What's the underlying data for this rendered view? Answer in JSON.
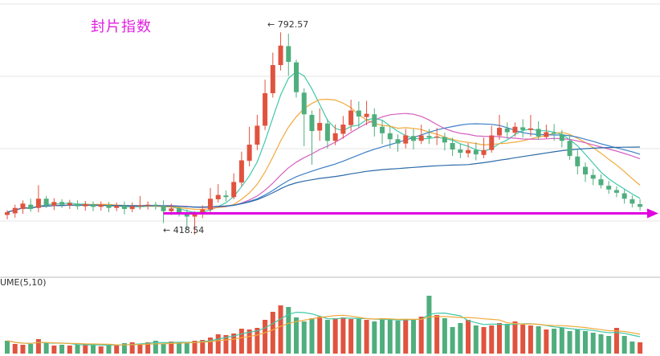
{
  "title": "封片指数",
  "colors": {
    "up": "#e0533e",
    "down": "#4fae7d",
    "ma5": "#40c8a8",
    "ma10": "#f2a93b",
    "ma20": "#d65fc0",
    "ma30": "#3c7fc8",
    "ma60": "#2b6aa8",
    "support": "#e000e0",
    "grid": "#e6e6e6",
    "divider": "#bbbbbb"
  },
  "chart_data": {
    "type": "candlestick",
    "title": "封片指数",
    "annotations": {
      "high_label": "← 792.57",
      "low_label": "← 418.54",
      "high": 792.57,
      "low": 418.54
    },
    "volume_label": "UME(5,10)",
    "candles": [
      [
        455,
        460,
        447,
        464
      ],
      [
        458,
        468,
        450,
        474
      ],
      [
        466,
        476,
        457,
        482
      ],
      [
        474,
        466,
        461,
        485
      ],
      [
        468,
        485,
        460,
        510
      ],
      [
        485,
        473,
        468,
        490
      ],
      [
        472,
        479,
        464,
        486
      ],
      [
        479,
        474,
        468,
        484
      ],
      [
        473,
        477,
        466,
        483
      ],
      [
        476,
        471,
        465,
        482
      ],
      [
        471,
        475,
        463,
        481
      ],
      [
        475,
        470,
        462,
        480
      ],
      [
        470,
        474,
        463,
        480
      ],
      [
        473,
        468,
        460,
        479
      ],
      [
        468,
        472,
        462,
        478
      ],
      [
        472,
        466,
        456,
        480
      ],
      [
        466,
        471,
        460,
        478
      ],
      [
        471,
        473,
        465,
        490
      ],
      [
        473,
        474,
        465,
        480
      ],
      [
        474,
        472,
        465,
        479
      ],
      [
        472,
        462,
        440,
        482
      ],
      [
        462,
        467,
        455,
        476
      ],
      [
        467,
        460,
        452,
        472
      ],
      [
        459,
        452,
        428,
        465
      ],
      [
        452,
        458,
        418.54,
        462
      ],
      [
        457,
        465,
        449,
        473
      ],
      [
        465,
        485,
        458,
        505
      ],
      [
        484,
        492,
        478,
        512
      ],
      [
        491,
        488,
        480,
        500
      ],
      [
        488,
        516,
        484,
        532
      ],
      [
        515,
        556,
        508,
        572
      ],
      [
        555,
        585,
        545,
        618
      ],
      [
        585,
        620,
        575,
        640
      ],
      [
        620,
        680,
        612,
        705
      ],
      [
        680,
        732,
        672,
        755
      ],
      [
        732,
        768,
        722,
        792.57
      ],
      [
        767,
        738,
        712,
        790
      ],
      [
        737,
        682,
        672,
        742
      ],
      [
        681,
        641,
        582,
        689
      ],
      [
        640,
        610,
        548,
        648
      ],
      [
        611,
        625,
        592,
        652
      ],
      [
        624,
        592,
        578,
        632
      ],
      [
        592,
        606,
        584,
        622
      ],
      [
        605,
        622,
        596,
        638
      ],
      [
        621,
        648,
        610,
        668
      ],
      [
        648,
        637,
        616,
        665
      ],
      [
        636,
        642,
        621,
        666
      ],
      [
        641,
        618,
        600,
        652
      ],
      [
        618,
        606,
        586,
        630
      ],
      [
        606,
        595,
        578,
        619
      ],
      [
        595,
        587,
        572,
        604
      ],
      [
        587,
        602,
        578,
        614
      ],
      [
        601,
        592,
        576,
        614
      ],
      [
        592,
        602,
        586,
        622
      ],
      [
        601,
        598,
        586,
        614
      ],
      [
        598,
        600,
        584,
        616
      ],
      [
        599,
        589,
        574,
        607
      ],
      [
        588,
        576,
        564,
        598
      ],
      [
        576,
        570,
        560,
        587
      ],
      [
        569,
        575,
        561,
        588
      ],
      [
        575,
        567,
        556,
        589
      ],
      [
        566,
        575,
        560,
        598
      ],
      [
        575,
        602,
        570,
        620
      ],
      [
        602,
        616,
        594,
        640
      ],
      [
        615,
        608,
        596,
        626
      ],
      [
        607,
        618,
        600,
        626
      ],
      [
        617,
        612,
        598,
        632
      ],
      [
        612,
        615,
        600,
        640
      ],
      [
        614,
        600,
        594,
        628
      ],
      [
        599,
        608,
        596,
        622
      ],
      [
        607,
        605,
        592,
        623
      ],
      [
        604,
        592,
        580,
        612
      ],
      [
        592,
        564,
        557,
        602
      ],
      [
        563,
        545,
        530,
        575
      ],
      [
        544,
        530,
        516,
        552
      ],
      [
        529,
        522,
        510,
        540
      ],
      [
        521,
        510,
        504,
        530
      ],
      [
        509,
        502,
        494,
        518
      ],
      [
        501,
        496,
        488,
        508
      ],
      [
        495,
        485,
        476,
        502
      ],
      [
        484,
        476,
        469,
        491
      ],
      [
        475,
        470,
        463,
        484
      ]
    ],
    "volumes": [
      [
        16,
        0
      ],
      [
        12,
        1
      ],
      [
        11,
        1
      ],
      [
        12,
        0
      ],
      [
        18,
        1
      ],
      [
        14,
        0
      ],
      [
        10,
        1
      ],
      [
        11,
        0
      ],
      [
        10,
        1
      ],
      [
        11,
        0
      ],
      [
        12,
        1
      ],
      [
        11,
        0
      ],
      [
        9,
        1
      ],
      [
        10,
        0
      ],
      [
        11,
        1
      ],
      [
        13,
        0
      ],
      [
        14,
        1
      ],
      [
        12,
        1
      ],
      [
        14,
        1
      ],
      [
        16,
        0
      ],
      [
        12,
        0
      ],
      [
        15,
        1
      ],
      [
        14,
        0
      ],
      [
        13,
        0
      ],
      [
        16,
        1
      ],
      [
        17,
        1
      ],
      [
        20,
        1
      ],
      [
        24,
        1
      ],
      [
        23,
        1
      ],
      [
        25,
        1
      ],
      [
        31,
        1
      ],
      [
        30,
        1
      ],
      [
        32,
        1
      ],
      [
        42,
        1
      ],
      [
        52,
        1
      ],
      [
        60,
        1
      ],
      [
        58,
        0
      ],
      [
        45,
        0
      ],
      [
        40,
        0
      ],
      [
        44,
        0
      ],
      [
        46,
        1
      ],
      [
        42,
        0
      ],
      [
        44,
        1
      ],
      [
        45,
        1
      ],
      [
        43,
        1
      ],
      [
        44,
        0
      ],
      [
        42,
        1
      ],
      [
        40,
        0
      ],
      [
        44,
        0
      ],
      [
        42,
        0
      ],
      [
        41,
        0
      ],
      [
        43,
        1
      ],
      [
        42,
        0
      ],
      [
        46,
        1
      ],
      [
        72,
        0
      ],
      [
        48,
        1
      ],
      [
        44,
        0
      ],
      [
        33,
        0
      ],
      [
        38,
        0
      ],
      [
        42,
        1
      ],
      [
        35,
        0
      ],
      [
        33,
        1
      ],
      [
        35,
        1
      ],
      [
        38,
        1
      ],
      [
        37,
        0
      ],
      [
        40,
        1
      ],
      [
        36,
        1
      ],
      [
        35,
        1
      ],
      [
        34,
        0
      ],
      [
        30,
        1
      ],
      [
        31,
        0
      ],
      [
        32,
        0
      ],
      [
        28,
        0
      ],
      [
        30,
        0
      ],
      [
        28,
        0
      ],
      [
        26,
        0
      ],
      [
        24,
        0
      ],
      [
        22,
        0
      ],
      [
        32,
        1
      ],
      [
        22,
        0
      ],
      [
        15,
        0
      ],
      [
        14,
        1
      ]
    ],
    "support_line": 458
  }
}
